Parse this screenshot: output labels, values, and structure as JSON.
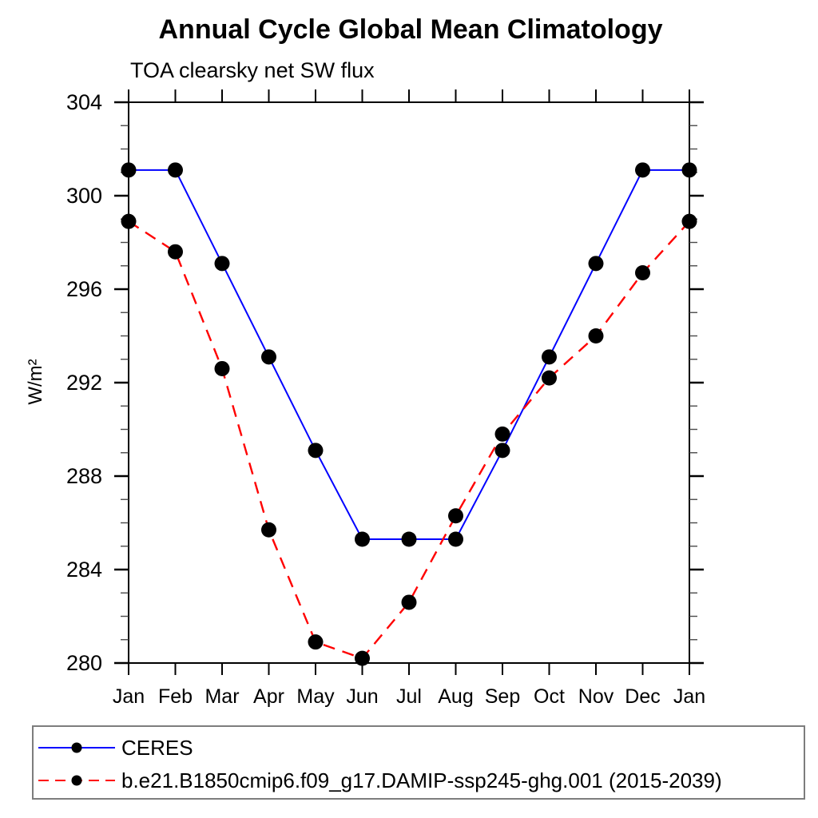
{
  "title": "Annual Cycle Global Mean Climatology",
  "subtitle": "TOA clearsky net SW flux",
  "chart_data": {
    "type": "line",
    "categories": [
      "Jan",
      "Feb",
      "Mar",
      "Apr",
      "May",
      "Jun",
      "Jul",
      "Aug",
      "Sep",
      "Oct",
      "Nov",
      "Dec",
      "Jan"
    ],
    "ylabel": "W/m²",
    "ylim": [
      280,
      304
    ],
    "ytick_major": [
      280,
      284,
      288,
      292,
      296,
      300,
      304
    ],
    "ytick_minor_step": 1,
    "grid": false,
    "legend_position": "bottom",
    "series": [
      {
        "name": "CERES",
        "line_color": "#0000ff",
        "line_style": "solid",
        "marker": "circle",
        "marker_color": "#000000",
        "values": [
          301.1,
          301.1,
          297.1,
          293.1,
          289.1,
          285.3,
          285.3,
          285.3,
          289.1,
          293.1,
          297.1,
          301.1,
          301.1
        ]
      },
      {
        "name": "b.e21.B1850cmip6.f09_g17.DAMIP-ssp245-ghg.001 (2015-2039)",
        "line_color": "#ff0000",
        "line_style": "dashed",
        "marker": "circle",
        "marker_color": "#000000",
        "values": [
          298.9,
          297.6,
          292.6,
          285.7,
          280.9,
          280.2,
          282.6,
          286.3,
          289.8,
          292.2,
          294.0,
          296.7,
          298.9
        ]
      }
    ]
  }
}
